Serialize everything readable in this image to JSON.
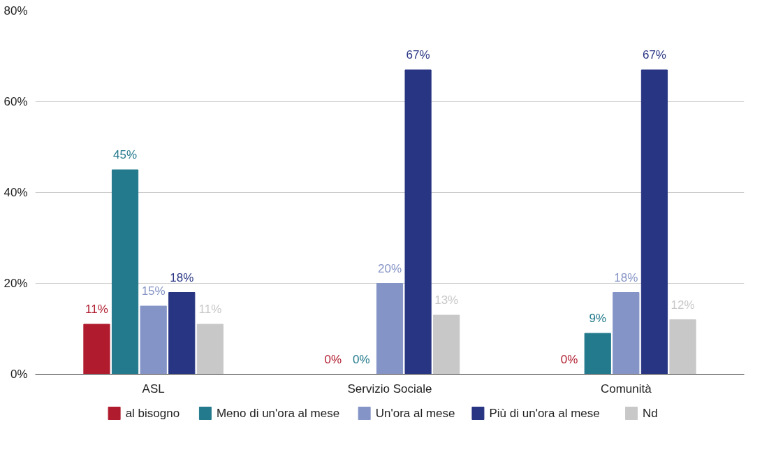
{
  "chart_data": {
    "type": "bar",
    "categories": [
      "ASL",
      "Servizio Sociale",
      "Comunità"
    ],
    "series": [
      {
        "name": "al bisogno",
        "color": "#b01c2e",
        "values": [
          11,
          0,
          0
        ],
        "value_labels": [
          "11%",
          "0%",
          "0%"
        ]
      },
      {
        "name": "Meno di un'ora al mese",
        "color": "#237a8c",
        "values": [
          45,
          0,
          9
        ],
        "value_labels": [
          "45%",
          "0%",
          "9%"
        ]
      },
      {
        "name": "Un'ora al mese",
        "color": "#8594c6",
        "values": [
          15,
          20,
          18
        ],
        "value_labels": [
          "15%",
          "20%",
          "18%"
        ]
      },
      {
        "name": "Più di un'ora al mese",
        "color": "#283583",
        "values": [
          18,
          67,
          67
        ],
        "value_labels": [
          "18%",
          "67%",
          "67%"
        ]
      },
      {
        "name": "Nd",
        "color": "#c8c8c8",
        "values": [
          11,
          13,
          12
        ],
        "value_labels": [
          "11%",
          "13%",
          "12%"
        ]
      }
    ],
    "ylim": [
      0,
      80
    ],
    "yticks": [
      {
        "value": 0,
        "label": "0%"
      },
      {
        "value": 20,
        "label": "20%"
      },
      {
        "value": 40,
        "label": "40%"
      },
      {
        "value": 60,
        "label": "60%"
      },
      {
        "value": 80,
        "label": "80%"
      }
    ],
    "grid": "y",
    "legend": "bottom"
  }
}
